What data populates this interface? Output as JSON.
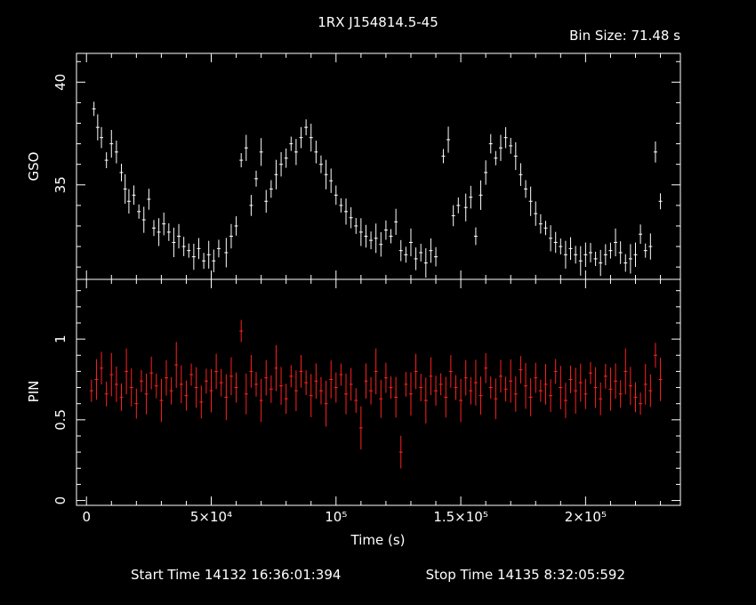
{
  "title": "1RX J154814.5-45",
  "bin_size_label": "Bin Size:  71.48 s",
  "footer": {
    "start_label": "Start Time 14132 16:36:01:394",
    "stop_label": "Stop Time 14135  8:32:05:592"
  },
  "colors": {
    "background": "#000000",
    "gso": "#ffffff",
    "pin": "#ff2020",
    "axes": "#ffffff"
  },
  "chart_data": [
    {
      "type": "scatter",
      "name": "GSO",
      "ylabel": "GSO",
      "xlabel": "",
      "xlim": [
        -4000,
        238000
      ],
      "ylim": [
        30.4,
        41.4
      ],
      "yticks": [
        35,
        40
      ],
      "yticklabels": [
        "35",
        "40"
      ],
      "error_bars": true,
      "points": [
        [
          3000,
          38.7
        ],
        [
          4500,
          37.8
        ],
        [
          6000,
          37.3
        ],
        [
          8000,
          36.2
        ],
        [
          10000,
          37.0
        ],
        [
          12000,
          36.6
        ],
        [
          14000,
          35.6
        ],
        [
          15500,
          34.8
        ],
        [
          17000,
          34.2
        ],
        [
          19000,
          34.5
        ],
        [
          21000,
          33.7
        ],
        [
          23000,
          33.3
        ],
        [
          25000,
          34.3
        ],
        [
          27000,
          32.9
        ],
        [
          29000,
          32.7
        ],
        [
          31000,
          33.1
        ],
        [
          33000,
          32.7
        ],
        [
          35000,
          32.2
        ],
        [
          37000,
          32.5
        ],
        [
          39000,
          32.0
        ],
        [
          41000,
          31.8
        ],
        [
          43000,
          31.5
        ],
        [
          45000,
          31.9
        ],
        [
          47000,
          31.3
        ],
        [
          49000,
          31.6
        ],
        [
          51000,
          31.3
        ],
        [
          53000,
          31.9
        ],
        [
          56000,
          31.7
        ],
        [
          58000,
          32.5
        ],
        [
          60000,
          33.0
        ],
        [
          62000,
          36.2
        ],
        [
          64000,
          36.8
        ],
        [
          66000,
          34.0
        ],
        [
          68000,
          35.3
        ],
        [
          70000,
          36.6
        ],
        [
          72000,
          34.2
        ],
        [
          74000,
          34.8
        ],
        [
          76000,
          35.5
        ],
        [
          78000,
          36.0
        ],
        [
          80000,
          36.3
        ],
        [
          82000,
          37.0
        ],
        [
          84000,
          36.6
        ],
        [
          86000,
          37.3
        ],
        [
          88000,
          37.8
        ],
        [
          90000,
          37.3
        ],
        [
          92000,
          36.6
        ],
        [
          94000,
          36.0
        ],
        [
          96000,
          35.5
        ],
        [
          98000,
          35.2
        ],
        [
          100000,
          34.5
        ],
        [
          102000,
          34.0
        ],
        [
          104000,
          33.7
        ],
        [
          106000,
          33.4
        ],
        [
          108000,
          33.0
        ],
        [
          110000,
          32.7
        ],
        [
          112000,
          32.5
        ],
        [
          114000,
          32.3
        ],
        [
          116000,
          32.4
        ],
        [
          118000,
          32.1
        ],
        [
          120000,
          32.8
        ],
        [
          122000,
          32.5
        ],
        [
          124000,
          33.2
        ],
        [
          126000,
          31.8
        ],
        [
          128000,
          31.6
        ],
        [
          130000,
          32.2
        ],
        [
          132000,
          31.4
        ],
        [
          134000,
          31.7
        ],
        [
          136000,
          31.2
        ],
        [
          138000,
          31.8
        ],
        [
          140000,
          31.5
        ],
        [
          143000,
          36.4
        ],
        [
          145000,
          37.2
        ],
        [
          147000,
          33.5
        ],
        [
          149000,
          34.0
        ],
        [
          152000,
          33.9
        ],
        [
          154000,
          34.4
        ],
        [
          156000,
          32.5
        ],
        [
          158000,
          34.5
        ],
        [
          160000,
          35.6
        ],
        [
          162000,
          37.0
        ],
        [
          164000,
          36.3
        ],
        [
          166000,
          36.8
        ],
        [
          168000,
          37.3
        ],
        [
          170000,
          36.9
        ],
        [
          172000,
          36.4
        ],
        [
          174000,
          35.5
        ],
        [
          176000,
          34.8
        ],
        [
          178000,
          34.2
        ],
        [
          180000,
          33.6
        ],
        [
          182000,
          33.1
        ],
        [
          184000,
          32.9
        ],
        [
          186000,
          32.4
        ],
        [
          188000,
          32.2
        ],
        [
          190000,
          32.0
        ],
        [
          192000,
          31.6
        ],
        [
          194000,
          31.9
        ],
        [
          196000,
          31.6
        ],
        [
          198000,
          31.3
        ],
        [
          200000,
          31.6
        ],
        [
          202000,
          31.7
        ],
        [
          204000,
          31.4
        ],
        [
          206000,
          31.2
        ],
        [
          208000,
          31.6
        ],
        [
          210000,
          31.8
        ],
        [
          212000,
          32.2
        ],
        [
          214000,
          31.7
        ],
        [
          216000,
          31.2
        ],
        [
          218000,
          31.4
        ],
        [
          220000,
          31.6
        ],
        [
          222000,
          32.6
        ],
        [
          224000,
          31.8
        ],
        [
          226000,
          32.0
        ],
        [
          228000,
          36.6
        ],
        [
          230000,
          34.2
        ]
      ]
    },
    {
      "type": "scatter",
      "name": "PIN",
      "ylabel": "PIN",
      "xlabel": "Time (s)",
      "xlim": [
        -4000,
        238000
      ],
      "ylim": [
        -0.03,
        1.37
      ],
      "yticks": [
        0,
        0.5,
        1
      ],
      "yticklabels": [
        "0",
        "0.5",
        "1"
      ],
      "xticks": [
        0,
        50000,
        100000,
        150000,
        200000
      ],
      "xticklabels": [
        "0",
        "5×10⁴",
        "10⁵",
        "1.5×10⁵",
        "2×10⁵"
      ],
      "error_bars": true,
      "points": [
        [
          2000,
          0.68
        ],
        [
          4000,
          0.75
        ],
        [
          6000,
          0.82
        ],
        [
          8000,
          0.66
        ],
        [
          10000,
          0.78
        ],
        [
          12000,
          0.72
        ],
        [
          14000,
          0.64
        ],
        [
          16000,
          0.8
        ],
        [
          18000,
          0.7
        ],
        [
          20000,
          0.6
        ],
        [
          22000,
          0.74
        ],
        [
          24000,
          0.66
        ],
        [
          26000,
          0.79
        ],
        [
          28000,
          0.71
        ],
        [
          30000,
          0.62
        ],
        [
          32000,
          0.76
        ],
        [
          34000,
          0.68
        ],
        [
          36000,
          0.84
        ],
        [
          38000,
          0.72
        ],
        [
          40000,
          0.65
        ],
        [
          42000,
          0.78
        ],
        [
          44000,
          0.7
        ],
        [
          46000,
          0.61
        ],
        [
          48000,
          0.74
        ],
        [
          50000,
          0.68
        ],
        [
          52000,
          0.8
        ],
        [
          54000,
          0.73
        ],
        [
          56000,
          0.64
        ],
        [
          58000,
          0.77
        ],
        [
          60000,
          0.7
        ],
        [
          62000,
          1.05
        ],
        [
          64000,
          0.66
        ],
        [
          66000,
          0.8
        ],
        [
          68000,
          0.72
        ],
        [
          70000,
          0.62
        ],
        [
          72000,
          0.76
        ],
        [
          74000,
          0.69
        ],
        [
          76000,
          0.82
        ],
        [
          78000,
          0.71
        ],
        [
          80000,
          0.63
        ],
        [
          82000,
          0.77
        ],
        [
          84000,
          0.68
        ],
        [
          86000,
          0.8
        ],
        [
          88000,
          0.73
        ],
        [
          90000,
          0.65
        ],
        [
          92000,
          0.74
        ],
        [
          94000,
          0.68
        ],
        [
          96000,
          0.6
        ],
        [
          98000,
          0.75
        ],
        [
          100000,
          0.7
        ],
        [
          102000,
          0.78
        ],
        [
          104000,
          0.66
        ],
        [
          106000,
          0.72
        ],
        [
          108000,
          0.62
        ],
        [
          110000,
          0.45
        ],
        [
          112000,
          0.74
        ],
        [
          114000,
          0.68
        ],
        [
          116000,
          0.8
        ],
        [
          118000,
          0.63
        ],
        [
          120000,
          0.76
        ],
        [
          122000,
          0.7
        ],
        [
          124000,
          0.64
        ],
        [
          126000,
          0.3
        ],
        [
          128000,
          0.72
        ],
        [
          130000,
          0.66
        ],
        [
          132000,
          0.8
        ],
        [
          134000,
          0.7
        ],
        [
          136000,
          0.62
        ],
        [
          138000,
          0.77
        ],
        [
          140000,
          0.68
        ],
        [
          142000,
          0.72
        ],
        [
          144000,
          0.64
        ],
        [
          146000,
          0.8
        ],
        [
          148000,
          0.7
        ],
        [
          150000,
          0.62
        ],
        [
          152000,
          0.76
        ],
        [
          154000,
          0.68
        ],
        [
          156000,
          0.73
        ],
        [
          158000,
          0.65
        ],
        [
          160000,
          0.82
        ],
        [
          162000,
          0.7
        ],
        [
          164000,
          0.63
        ],
        [
          166000,
          0.77
        ],
        [
          168000,
          0.69
        ],
        [
          170000,
          0.74
        ],
        [
          172000,
          0.66
        ],
        [
          174000,
          0.81
        ],
        [
          176000,
          0.71
        ],
        [
          178000,
          0.64
        ],
        [
          180000,
          0.76
        ],
        [
          182000,
          0.68
        ],
        [
          184000,
          0.72
        ],
        [
          186000,
          0.65
        ],
        [
          188000,
          0.8
        ],
        [
          190000,
          0.7
        ],
        [
          192000,
          0.62
        ],
        [
          194000,
          0.75
        ],
        [
          196000,
          0.68
        ],
        [
          198000,
          0.73
        ],
        [
          200000,
          0.66
        ],
        [
          202000,
          0.79
        ],
        [
          204000,
          0.7
        ],
        [
          206000,
          0.63
        ],
        [
          208000,
          0.77
        ],
        [
          210000,
          0.69
        ],
        [
          212000,
          0.74
        ],
        [
          214000,
          0.66
        ],
        [
          216000,
          0.8
        ],
        [
          218000,
          0.71
        ],
        [
          220000,
          0.64
        ],
        [
          222000,
          0.6
        ],
        [
          224000,
          0.72
        ],
        [
          226000,
          0.68
        ],
        [
          228000,
          0.9
        ],
        [
          230000,
          0.75
        ]
      ]
    }
  ]
}
